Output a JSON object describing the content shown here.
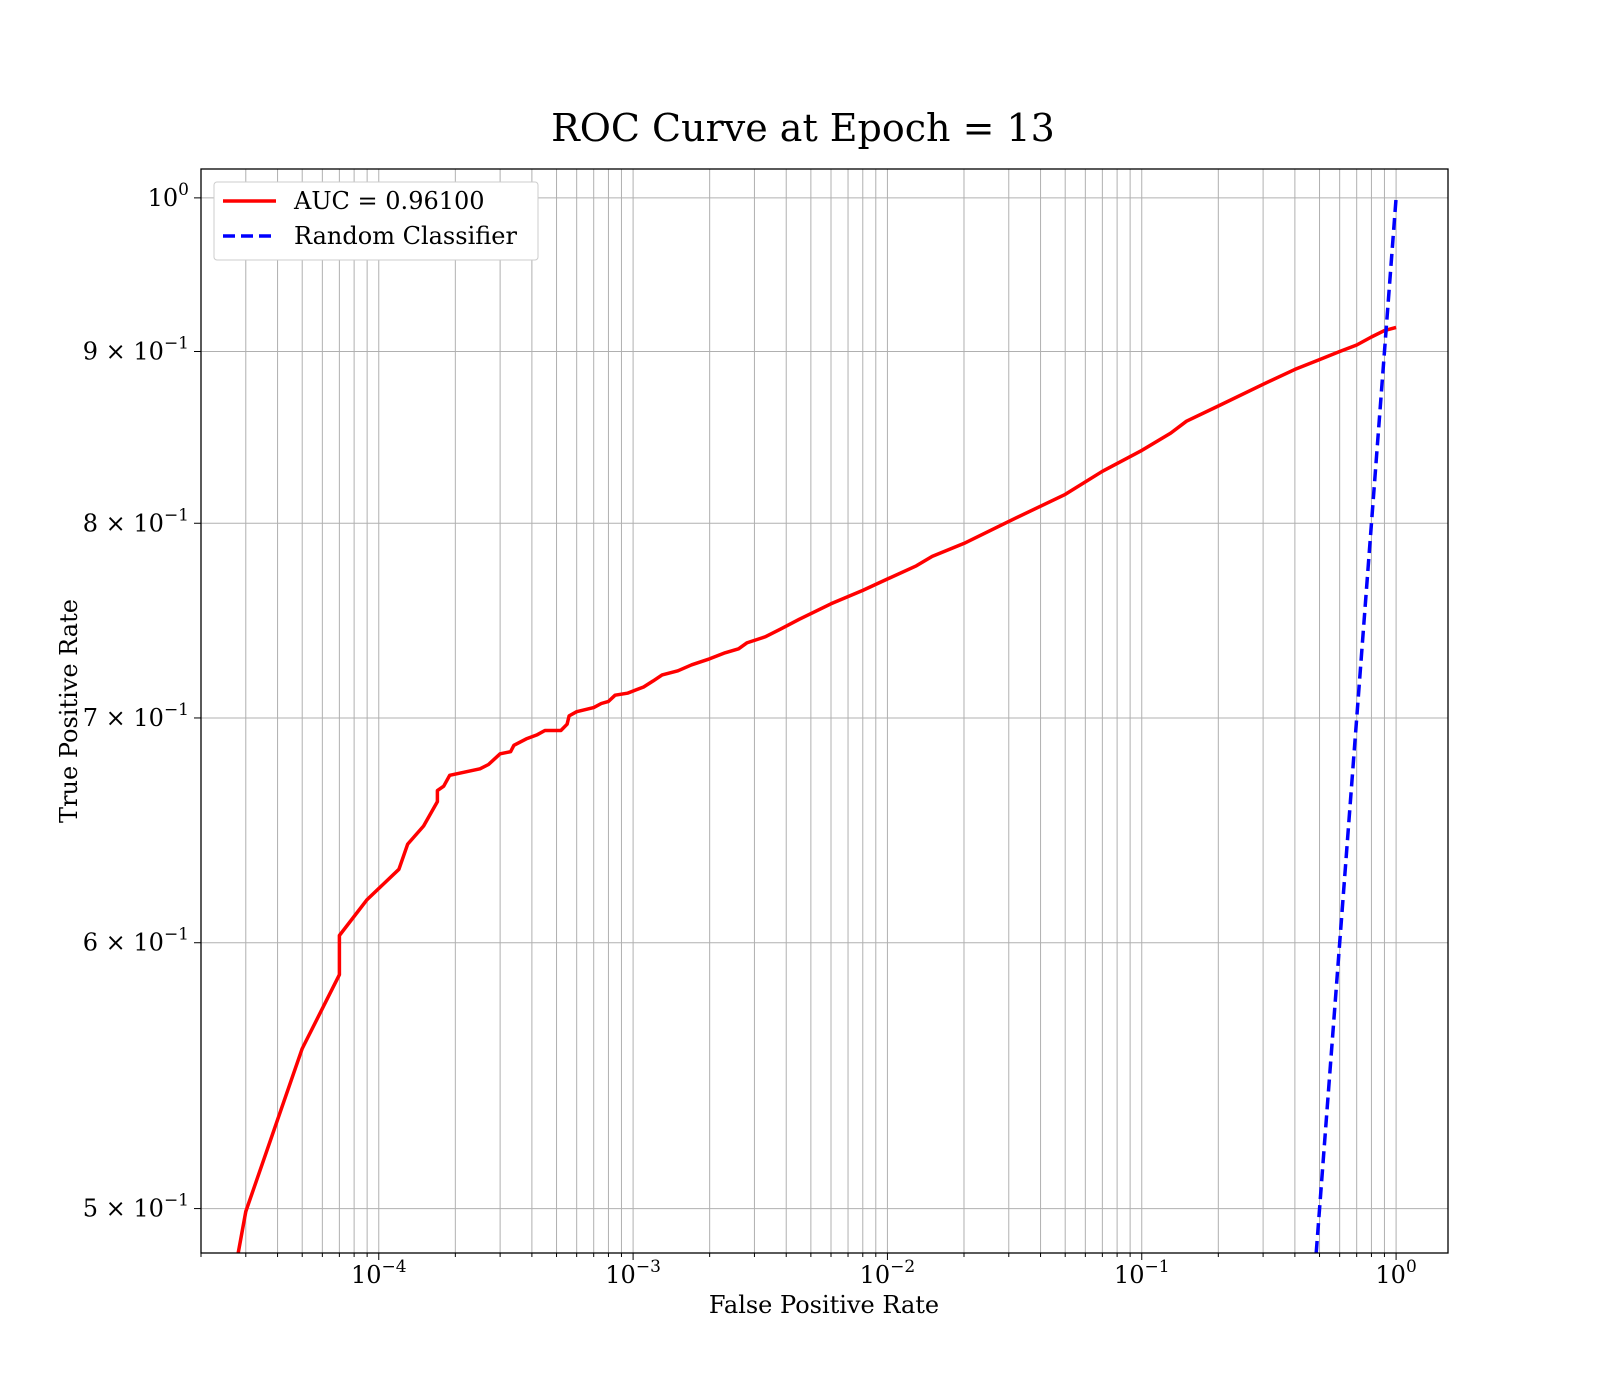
{
  "chart_data": {
    "type": "line",
    "title": "ROC Curve at Epoch = 13",
    "xlabel": "False Positive Rate",
    "ylabel": "True Positive Rate",
    "xscale": "log",
    "yscale": "log",
    "xlim": [
      2e-05,
      1.6
    ],
    "ylim": [
      0.485,
      1.02
    ],
    "grid": true,
    "grid_which": "both",
    "legend_position": "upper-left",
    "x_ticks": [
      {
        "value": 0.0001,
        "base": "10",
        "exp": "−4"
      },
      {
        "value": 0.001,
        "base": "10",
        "exp": "−3"
      },
      {
        "value": 0.01,
        "base": "10",
        "exp": "−2"
      },
      {
        "value": 0.1,
        "base": "10",
        "exp": "−1"
      },
      {
        "value": 1,
        "base": "10",
        "exp": "0"
      }
    ],
    "y_ticks": [
      {
        "value": 0.5,
        "base": "5 × 10",
        "exp": "−1"
      },
      {
        "value": 0.6,
        "base": "6 × 10",
        "exp": "−1"
      },
      {
        "value": 0.7,
        "base": "7 × 10",
        "exp": "−1"
      },
      {
        "value": 0.8,
        "base": "8 × 10",
        "exp": "−1"
      },
      {
        "value": 0.9,
        "base": "9 × 10",
        "exp": "−1"
      },
      {
        "value": 1.0,
        "base": "10",
        "exp": "0"
      }
    ],
    "series": [
      {
        "name": "AUC = 0.96100",
        "color": "#ff0000",
        "style": "solid",
        "x": [
          2.8e-05,
          3e-05,
          5e-05,
          7e-05,
          7e-05,
          9e-05,
          0.00012,
          0.00013,
          0.00015,
          0.00017,
          0.00017,
          0.00018,
          0.00019,
          0.00025,
          0.00027,
          0.0003,
          0.00033,
          0.00034,
          0.00038,
          0.00042,
          0.00045,
          0.00052,
          0.00055,
          0.00056,
          0.0006,
          0.0007,
          0.00075,
          0.0008,
          0.00085,
          0.00095,
          0.0011,
          0.0012,
          0.0013,
          0.0015,
          0.0017,
          0.002,
          0.0023,
          0.0026,
          0.0028,
          0.0033,
          0.0038,
          0.0045,
          0.006,
          0.008,
          0.01,
          0.013,
          0.015,
          0.02,
          0.03,
          0.05,
          0.07,
          0.1,
          0.13,
          0.15,
          0.2,
          0.3,
          0.4,
          0.5,
          0.6,
          0.7,
          0.8,
          0.9,
          1.0
        ],
        "y": [
          0.485,
          0.499,
          0.558,
          0.587,
          0.603,
          0.618,
          0.631,
          0.642,
          0.65,
          0.661,
          0.666,
          0.668,
          0.673,
          0.676,
          0.678,
          0.683,
          0.684,
          0.687,
          0.69,
          0.692,
          0.694,
          0.694,
          0.697,
          0.701,
          0.703,
          0.705,
          0.707,
          0.708,
          0.711,
          0.712,
          0.715,
          0.718,
          0.721,
          0.723,
          0.726,
          0.729,
          0.732,
          0.734,
          0.737,
          0.74,
          0.744,
          0.749,
          0.757,
          0.764,
          0.77,
          0.777,
          0.782,
          0.789,
          0.801,
          0.816,
          0.829,
          0.841,
          0.851,
          0.858,
          0.867,
          0.88,
          0.889,
          0.895,
          0.9,
          0.904,
          0.909,
          0.913,
          0.915
        ]
      },
      {
        "name": "Random Classifier",
        "color": "#0000ff",
        "style": "dashed",
        "x": [
          0.485,
          1.0
        ],
        "y": [
          0.485,
          1.0
        ]
      }
    ]
  }
}
